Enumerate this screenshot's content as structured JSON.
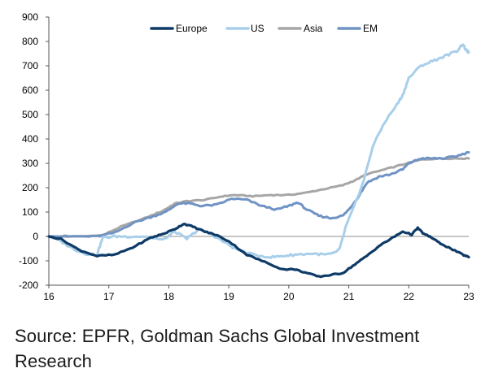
{
  "chart_data": {
    "type": "line",
    "title": "",
    "xlabel": "",
    "ylabel": "",
    "xlim": [
      16,
      23
    ],
    "ylim": [
      -200,
      900
    ],
    "y_ticks": [
      -200,
      -100,
      0,
      100,
      200,
      300,
      400,
      500,
      600,
      700,
      800,
      900
    ],
    "x_ticks": [
      16,
      17,
      18,
      19,
      20,
      21,
      22,
      23
    ],
    "grid": false,
    "legend_position": "top",
    "series": [
      {
        "name": "Europe",
        "color": "#0d3a66",
        "x": [
          16.0,
          16.2,
          16.5,
          16.8,
          17.1,
          17.4,
          17.7,
          17.9,
          18.1,
          18.25,
          18.4,
          18.6,
          18.8,
          19.0,
          19.3,
          19.6,
          19.9,
          20.1,
          20.3,
          20.5,
          20.7,
          20.9,
          21.1,
          21.3,
          21.5,
          21.7,
          21.9,
          22.05,
          22.15,
          22.25,
          22.35,
          22.5,
          22.7,
          22.9,
          23.0
        ],
        "values": [
          0,
          -10,
          -55,
          -80,
          -75,
          -45,
          -5,
          10,
          30,
          52,
          40,
          20,
          5,
          -20,
          -75,
          -105,
          -135,
          -135,
          -150,
          -165,
          -158,
          -150,
          -115,
          -80,
          -40,
          -10,
          20,
          8,
          35,
          10,
          0,
          -25,
          -50,
          -75,
          -85
        ]
      },
      {
        "name": "US",
        "color": "#a8cfea",
        "x": [
          16.0,
          16.2,
          16.4,
          16.6,
          16.8,
          16.9,
          17.1,
          17.3,
          17.6,
          17.9,
          18.1,
          18.3,
          18.5,
          18.7,
          18.9,
          19.1,
          19.4,
          19.7,
          19.9,
          20.1,
          20.4,
          20.6,
          20.75,
          20.85,
          20.95,
          21.1,
          21.25,
          21.4,
          21.6,
          21.8,
          21.9,
          22.0,
          22.2,
          22.4,
          22.6,
          22.8,
          22.9,
          22.95,
          23.0
        ],
        "values": [
          0,
          -20,
          -50,
          -70,
          -75,
          -5,
          0,
          0,
          0,
          -15,
          20,
          -10,
          30,
          10,
          -20,
          -50,
          -75,
          -85,
          -80,
          -75,
          -70,
          -75,
          -70,
          -50,
          40,
          130,
          230,
          370,
          470,
          540,
          580,
          650,
          700,
          720,
          740,
          760,
          790,
          765,
          755
        ]
      },
      {
        "name": "Asia",
        "color": "#a6a6a6",
        "x": [
          16.0,
          16.5,
          16.9,
          17.2,
          17.6,
          17.9,
          18.1,
          18.3,
          18.6,
          18.9,
          19.1,
          19.4,
          19.7,
          20.0,
          20.3,
          20.6,
          20.9,
          21.1,
          21.3,
          21.6,
          21.9,
          22.2,
          22.5,
          22.8,
          23.0
        ],
        "values": [
          0,
          0,
          5,
          40,
          75,
          105,
          135,
          145,
          150,
          165,
          170,
          165,
          170,
          170,
          180,
          195,
          210,
          230,
          255,
          275,
          295,
          315,
          320,
          320,
          320
        ]
      },
      {
        "name": "EM",
        "color": "#6f93c4",
        "x": [
          16.0,
          16.4,
          16.8,
          17.1,
          17.4,
          17.7,
          17.95,
          18.15,
          18.35,
          18.55,
          18.8,
          19.05,
          19.3,
          19.55,
          19.8,
          20.0,
          20.15,
          20.3,
          20.5,
          20.7,
          20.9,
          21.0,
          21.15,
          21.3,
          21.5,
          21.7,
          21.9,
          22.0,
          22.2,
          22.4,
          22.6,
          22.8,
          23.0
        ],
        "values": [
          0,
          0,
          0,
          15,
          55,
          80,
          100,
          135,
          135,
          125,
          130,
          155,
          150,
          125,
          110,
          125,
          140,
          110,
          85,
          75,
          85,
          110,
          160,
          220,
          245,
          255,
          275,
          300,
          320,
          320,
          320,
          330,
          345
        ]
      }
    ]
  },
  "source": {
    "text": "Source: EPFR, Goldman Sachs Global Investment Research"
  }
}
